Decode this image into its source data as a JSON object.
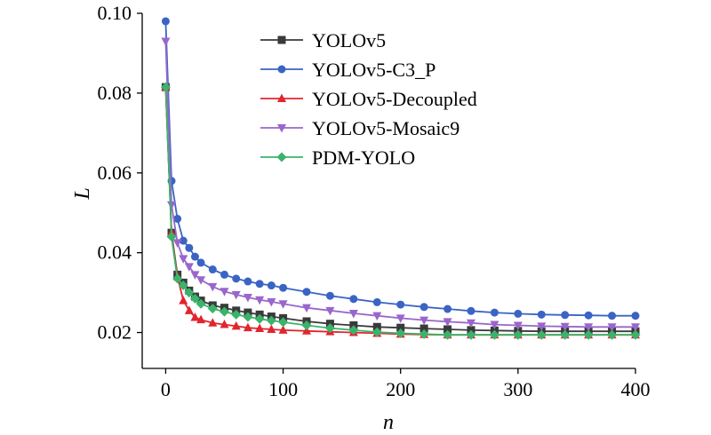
{
  "chart_data": {
    "type": "line",
    "title": "",
    "xlabel": "n",
    "ylabel": "L",
    "xlim": [
      -20,
      400
    ],
    "ylim": [
      0.011,
      0.1
    ],
    "xticks": [
      0,
      100,
      200,
      300,
      400
    ],
    "xtick_labels": [
      "0",
      "100",
      "200",
      "300",
      "400"
    ],
    "yticks": [
      0.02,
      0.04,
      0.06,
      0.08,
      0.1
    ],
    "ytick_labels": [
      "0.02",
      "0.04",
      "0.06",
      "0.08",
      "0.10"
    ],
    "grid": false,
    "legend_position": "top-right",
    "series": [
      {
        "name": "YOLOv5",
        "color": "#3a3a3a",
        "marker": "square",
        "x": [
          0,
          5,
          10,
          15,
          20,
          25,
          30,
          40,
          50,
          60,
          70,
          80,
          90,
          100,
          120,
          140,
          160,
          180,
          200,
          220,
          240,
          260,
          280,
          300,
          320,
          340,
          360,
          380,
          400
        ],
        "y": [
          0.0815,
          0.045,
          0.0345,
          0.0325,
          0.0305,
          0.029,
          0.028,
          0.0268,
          0.0262,
          0.0255,
          0.025,
          0.0245,
          0.024,
          0.0236,
          0.0228,
          0.0222,
          0.0218,
          0.0214,
          0.0212,
          0.021,
          0.0208,
          0.0206,
          0.0205,
          0.0204,
          0.0203,
          0.0203,
          0.0203,
          0.0203,
          0.0203
        ]
      },
      {
        "name": "YOLOv5-C3_P",
        "color": "#3a64c4",
        "marker": "circle",
        "x": [
          0,
          5,
          10,
          15,
          20,
          25,
          30,
          40,
          50,
          60,
          70,
          80,
          90,
          100,
          120,
          140,
          160,
          180,
          200,
          220,
          240,
          260,
          280,
          300,
          320,
          340,
          360,
          380,
          400
        ],
        "y": [
          0.098,
          0.058,
          0.0485,
          0.043,
          0.0412,
          0.039,
          0.0375,
          0.0358,
          0.0345,
          0.0335,
          0.0328,
          0.0322,
          0.0318,
          0.0312,
          0.0302,
          0.0292,
          0.0284,
          0.0276,
          0.027,
          0.0264,
          0.0259,
          0.0254,
          0.025,
          0.0247,
          0.0245,
          0.0244,
          0.0243,
          0.0242,
          0.0242
        ]
      },
      {
        "name": "YOLOv5-Decoupled",
        "color": "#e0262e",
        "marker": "triangle-up",
        "x": [
          0,
          5,
          10,
          15,
          20,
          25,
          30,
          40,
          50,
          60,
          70,
          80,
          90,
          100,
          120,
          140,
          160,
          180,
          200,
          220,
          240,
          260,
          280,
          300,
          320,
          340,
          360,
          380,
          400
        ],
        "y": [
          0.0815,
          0.045,
          0.034,
          0.028,
          0.0255,
          0.0238,
          0.0232,
          0.0224,
          0.022,
          0.0216,
          0.0212,
          0.021,
          0.0208,
          0.0206,
          0.0204,
          0.0202,
          0.02,
          0.0198,
          0.0196,
          0.0195,
          0.0194,
          0.0194,
          0.0194,
          0.0194,
          0.0194,
          0.0194,
          0.0194,
          0.0194,
          0.0194
        ]
      },
      {
        "name": "YOLOv5-Mosaic9",
        "color": "#9966cc",
        "marker": "triangle-down",
        "x": [
          0,
          5,
          10,
          15,
          20,
          25,
          30,
          40,
          50,
          60,
          70,
          80,
          90,
          100,
          120,
          140,
          160,
          180,
          200,
          220,
          240,
          260,
          280,
          300,
          320,
          340,
          360,
          380,
          400
        ],
        "y": [
          0.093,
          0.052,
          0.0425,
          0.0385,
          0.0365,
          0.0345,
          0.0332,
          0.0315,
          0.0303,
          0.0295,
          0.0288,
          0.0282,
          0.0277,
          0.0272,
          0.0262,
          0.0255,
          0.0248,
          0.0242,
          0.0236,
          0.0231,
          0.0227,
          0.0224,
          0.022,
          0.0218,
          0.0216,
          0.0215,
          0.0214,
          0.0214,
          0.0214
        ]
      },
      {
        "name": "PDM-YOLO",
        "color": "#3bb36b",
        "marker": "diamond",
        "x": [
          0,
          5,
          10,
          15,
          20,
          25,
          30,
          40,
          50,
          60,
          70,
          80,
          90,
          100,
          120,
          140,
          160,
          180,
          200,
          220,
          240,
          260,
          280,
          300,
          320,
          340,
          360,
          380,
          400
        ],
        "y": [
          0.0815,
          0.044,
          0.0335,
          0.0318,
          0.03,
          0.0285,
          0.0272,
          0.026,
          0.0252,
          0.0245,
          0.0239,
          0.0234,
          0.023,
          0.0226,
          0.0218,
          0.0211,
          0.0206,
          0.0201,
          0.0198,
          0.0196,
          0.0194,
          0.0194,
          0.0194,
          0.0194,
          0.0194,
          0.0194,
          0.0194,
          0.0194,
          0.0194
        ]
      }
    ]
  }
}
